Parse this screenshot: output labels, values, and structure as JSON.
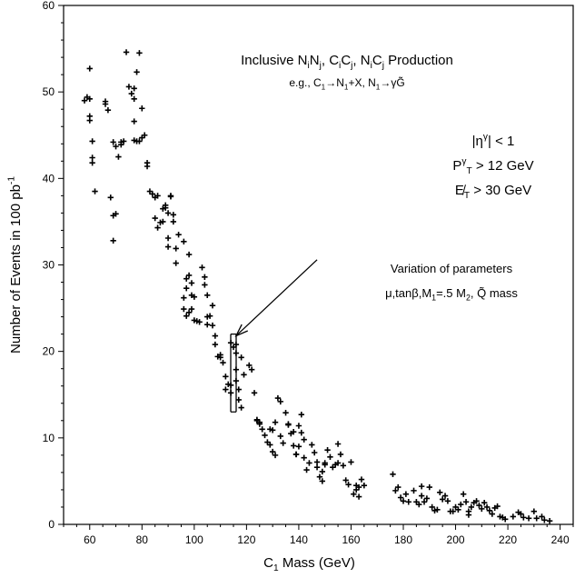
{
  "chart_data": {
    "type": "scatter",
    "xlabel": {
      "main": "C",
      "sub": "1",
      "rest": " Mass (GeV)"
    },
    "ylabel": {
      "main": "Number of Events in 100 pb",
      "sup": "-1"
    },
    "xlim": [
      50,
      245
    ],
    "ylim": [
      0,
      60
    ],
    "x_ticks": [
      60,
      80,
      100,
      120,
      140,
      160,
      180,
      200,
      220,
      240
    ],
    "y_ticks": [
      0,
      10,
      20,
      30,
      40,
      50,
      60
    ],
    "grid": false,
    "marker": "+",
    "annotations": {
      "title_line1": [
        {
          "t": "Inclusive N"
        },
        {
          "t": "i",
          "sub": true
        },
        {
          "t": "N"
        },
        {
          "t": "j",
          "sub": true
        },
        {
          "t": ", C"
        },
        {
          "t": "i",
          "sub": true
        },
        {
          "t": "C"
        },
        {
          "t": "j",
          "sub": true
        },
        {
          "t": ", N"
        },
        {
          "t": "i",
          "sub": true
        },
        {
          "t": "C"
        },
        {
          "t": "j",
          "sub": true
        },
        {
          "t": " Production"
        }
      ],
      "title_line2": [
        {
          "t": "e.g., C"
        },
        {
          "t": "1",
          "sub": true
        },
        {
          "t": "→N"
        },
        {
          "t": "1",
          "sub": true
        },
        {
          "t": "+X, N"
        },
        {
          "t": "1",
          "sub": true
        },
        {
          "t": "→γG̃"
        }
      ],
      "cut1": [
        {
          "t": "|η"
        },
        {
          "t": "γ",
          "sup": true
        },
        {
          "t": "| < 1"
        }
      ],
      "cut2": [
        {
          "t": "P"
        },
        {
          "t": "γ",
          "sup": true
        },
        {
          "t": "T",
          "sub": true
        },
        {
          "t": " > 12 GeV"
        }
      ],
      "cut3": [
        {
          "t": "E̸"
        },
        {
          "t": "T",
          "sub": true
        },
        {
          "t": " > 30 GeV"
        }
      ],
      "var1": [
        {
          "t": "Variation of parameters"
        }
      ],
      "var2": [
        {
          "t": "μ,tanβ,M"
        },
        {
          "t": "1",
          "sub": true
        },
        {
          "t": "=.5 M"
        },
        {
          "t": "2",
          "sub": true
        },
        {
          "t": ", Q̃ mass"
        }
      ]
    },
    "bracket": {
      "x": 115,
      "y_range": [
        13,
        22
      ]
    },
    "arrow": {
      "from": [
        147,
        30.6
      ],
      "to": [
        116,
        21.8
      ]
    },
    "points": [
      [
        58,
        49
      ],
      [
        59,
        49.4
      ],
      [
        60,
        49.2
      ],
      [
        60,
        52.7
      ],
      [
        60,
        47.2
      ],
      [
        60,
        46.7
      ],
      [
        61,
        44.3
      ],
      [
        61,
        42.4
      ],
      [
        61,
        41.8
      ],
      [
        62,
        38.5
      ],
      [
        66,
        48.6
      ],
      [
        67,
        47.9
      ],
      [
        66,
        48.9
      ],
      [
        68,
        37.8
      ],
      [
        69,
        35.7
      ],
      [
        70,
        35.9
      ],
      [
        69,
        32.8
      ],
      [
        69,
        44.2
      ],
      [
        70,
        43.7
      ],
      [
        71,
        42.5
      ],
      [
        72,
        43.9
      ],
      [
        72,
        44.2
      ],
      [
        73,
        44.3
      ],
      [
        74,
        54.6
      ],
      [
        75,
        50.6
      ],
      [
        76,
        49.8
      ],
      [
        77,
        50.4
      ],
      [
        78,
        52.3
      ],
      [
        79,
        54.5
      ],
      [
        77,
        49.2
      ],
      [
        77,
        46.6
      ],
      [
        77,
        44.4
      ],
      [
        78,
        44.3
      ],
      [
        79,
        44.3
      ],
      [
        80,
        44.7
      ],
      [
        80,
        48.1
      ],
      [
        81,
        45.0
      ],
      [
        82,
        41.8
      ],
      [
        82,
        41.4
      ],
      [
        83,
        38.5
      ],
      [
        84,
        38.2
      ],
      [
        85,
        37.8
      ],
      [
        85,
        35.4
      ],
      [
        86,
        34.3
      ],
      [
        86,
        38.0
      ],
      [
        87,
        34.9
      ],
      [
        88,
        35.0
      ],
      [
        88,
        36.5
      ],
      [
        89,
        36.6
      ],
      [
        89,
        36.9
      ],
      [
        90,
        36.0
      ],
      [
        90,
        33.1
      ],
      [
        90,
        32.1
      ],
      [
        91,
        37.9
      ],
      [
        91,
        38.0
      ],
      [
        92,
        35.8
      ],
      [
        92,
        35.0
      ],
      [
        93,
        31.9
      ],
      [
        93,
        30.2
      ],
      [
        94,
        33.5
      ],
      [
        96,
        32.7
      ],
      [
        97,
        28.4
      ],
      [
        97,
        27.3
      ],
      [
        98,
        31.2
      ],
      [
        98,
        28.8
      ],
      [
        99,
        27.9
      ],
      [
        99,
        26.5
      ],
      [
        96,
        26.2
      ],
      [
        96,
        24.9
      ],
      [
        97,
        24.1
      ],
      [
        98,
        24.5
      ],
      [
        99,
        24.9
      ],
      [
        100,
        23.6
      ],
      [
        100,
        26.3
      ],
      [
        101,
        23.5
      ],
      [
        102,
        23.4
      ],
      [
        103,
        29.7
      ],
      [
        104,
        28.6
      ],
      [
        104,
        27.7
      ],
      [
        105,
        26.5
      ],
      [
        105,
        24.0
      ],
      [
        105,
        23.1
      ],
      [
        106,
        24.1
      ],
      [
        107,
        25.3
      ],
      [
        107,
        23.0
      ],
      [
        108,
        21.8
      ],
      [
        108,
        20.8
      ],
      [
        109,
        19.4
      ],
      [
        110,
        19.6
      ],
      [
        110,
        19.3
      ],
      [
        111,
        18.7
      ],
      [
        112,
        17.1
      ],
      [
        112,
        15.6
      ],
      [
        113,
        16.2
      ],
      [
        114,
        16.1
      ],
      [
        114,
        15.2
      ],
      [
        114,
        21.0
      ],
      [
        115,
        20.5
      ],
      [
        116,
        19.8
      ],
      [
        116,
        17.9
      ],
      [
        116,
        16.6
      ],
      [
        117,
        15.6
      ],
      [
        117,
        14.4
      ],
      [
        118,
        13.5
      ],
      [
        116,
        20.8
      ],
      [
        118,
        19.3
      ],
      [
        119,
        17.3
      ],
      [
        121,
        18.4
      ],
      [
        122,
        17.9
      ],
      [
        123,
        15.2
      ],
      [
        124,
        12.1
      ],
      [
        124,
        12.0
      ],
      [
        125,
        11.8
      ],
      [
        125,
        11.6
      ],
      [
        126,
        11.0
      ],
      [
        127,
        10.3
      ],
      [
        128,
        9.5
      ],
      [
        129,
        11.0
      ],
      [
        129,
        9.2
      ],
      [
        130,
        8.4
      ],
      [
        130,
        10.9
      ],
      [
        131,
        8.0
      ],
      [
        131,
        11.8
      ],
      [
        132,
        14.6
      ],
      [
        133,
        14.2
      ],
      [
        133,
        10.2
      ],
      [
        134,
        9.4
      ],
      [
        135,
        12.9
      ],
      [
        136,
        11.6
      ],
      [
        136,
        11.5
      ],
      [
        137,
        10.5
      ],
      [
        138,
        10.7
      ],
      [
        138,
        9.1
      ],
      [
        139,
        8.1
      ],
      [
        139,
        8.1
      ],
      [
        140,
        9.0
      ],
      [
        140,
        11.4
      ],
      [
        141,
        12.7
      ],
      [
        141,
        10.6
      ],
      [
        142,
        9.8
      ],
      [
        142,
        7.7
      ],
      [
        143,
        6.3
      ],
      [
        144,
        7.1
      ],
      [
        145,
        9.2
      ],
      [
        146,
        8.3
      ],
      [
        147,
        7.2
      ],
      [
        147,
        6.6
      ],
      [
        148,
        5.5
      ],
      [
        149,
        5.0
      ],
      [
        149,
        6.1
      ],
      [
        150,
        6.9
      ],
      [
        150,
        7.1
      ],
      [
        151,
        8.6
      ],
      [
        152,
        7.8
      ],
      [
        153,
        6.6
      ],
      [
        154,
        6.9
      ],
      [
        155,
        7.1
      ],
      [
        155,
        9.3
      ],
      [
        156,
        8.1
      ],
      [
        157,
        6.8
      ],
      [
        158,
        5.1
      ],
      [
        159,
        4.6
      ],
      [
        160,
        7.2
      ],
      [
        161,
        3.5
      ],
      [
        162,
        4.0
      ],
      [
        162,
        4.5
      ],
      [
        163,
        4.3
      ],
      [
        163,
        3.2
      ],
      [
        164,
        5.2
      ],
      [
        165,
        4.5
      ],
      [
        176,
        5.8
      ],
      [
        177,
        3.9
      ],
      [
        178,
        4.3
      ],
      [
        179,
        3.1
      ],
      [
        180,
        2.7
      ],
      [
        181,
        3.5
      ],
      [
        182,
        2.6
      ],
      [
        184,
        3.9
      ],
      [
        185,
        2.6
      ],
      [
        186,
        2.3
      ],
      [
        187,
        4.4
      ],
      [
        187,
        3.3
      ],
      [
        188,
        2.6
      ],
      [
        189,
        3.0
      ],
      [
        190,
        4.3
      ],
      [
        191,
        2.0
      ],
      [
        192,
        1.6
      ],
      [
        193,
        1.7
      ],
      [
        194,
        3.7
      ],
      [
        195,
        2.9
      ],
      [
        196,
        3.3
      ],
      [
        197,
        2.7
      ],
      [
        198,
        1.5
      ],
      [
        199,
        1.5
      ],
      [
        200,
        2.0
      ],
      [
        201,
        1.7
      ],
      [
        202,
        2.3
      ],
      [
        203,
        3.5
      ],
      [
        204,
        2.6
      ],
      [
        205,
        1.5
      ],
      [
        205,
        1.1
      ],
      [
        206,
        2.0
      ],
      [
        207,
        2.5
      ],
      [
        208,
        2.7
      ],
      [
        209,
        2.2
      ],
      [
        210,
        1.8
      ],
      [
        211,
        2.5
      ],
      [
        212,
        2.0
      ],
      [
        213,
        1.6
      ],
      [
        214,
        1.2
      ],
      [
        215,
        1.9
      ],
      [
        216,
        2.1
      ],
      [
        217,
        0.9
      ],
      [
        218,
        0.8
      ],
      [
        219,
        0.6
      ],
      [
        222,
        0.9
      ],
      [
        224,
        1.4
      ],
      [
        225,
        1.2
      ],
      [
        226,
        0.8
      ],
      [
        230,
        1.5
      ],
      [
        231,
        0.7
      ],
      [
        233,
        0.9
      ],
      [
        234,
        0.5
      ],
      [
        228,
        0.7
      ],
      [
        236,
        0.4
      ]
    ]
  }
}
